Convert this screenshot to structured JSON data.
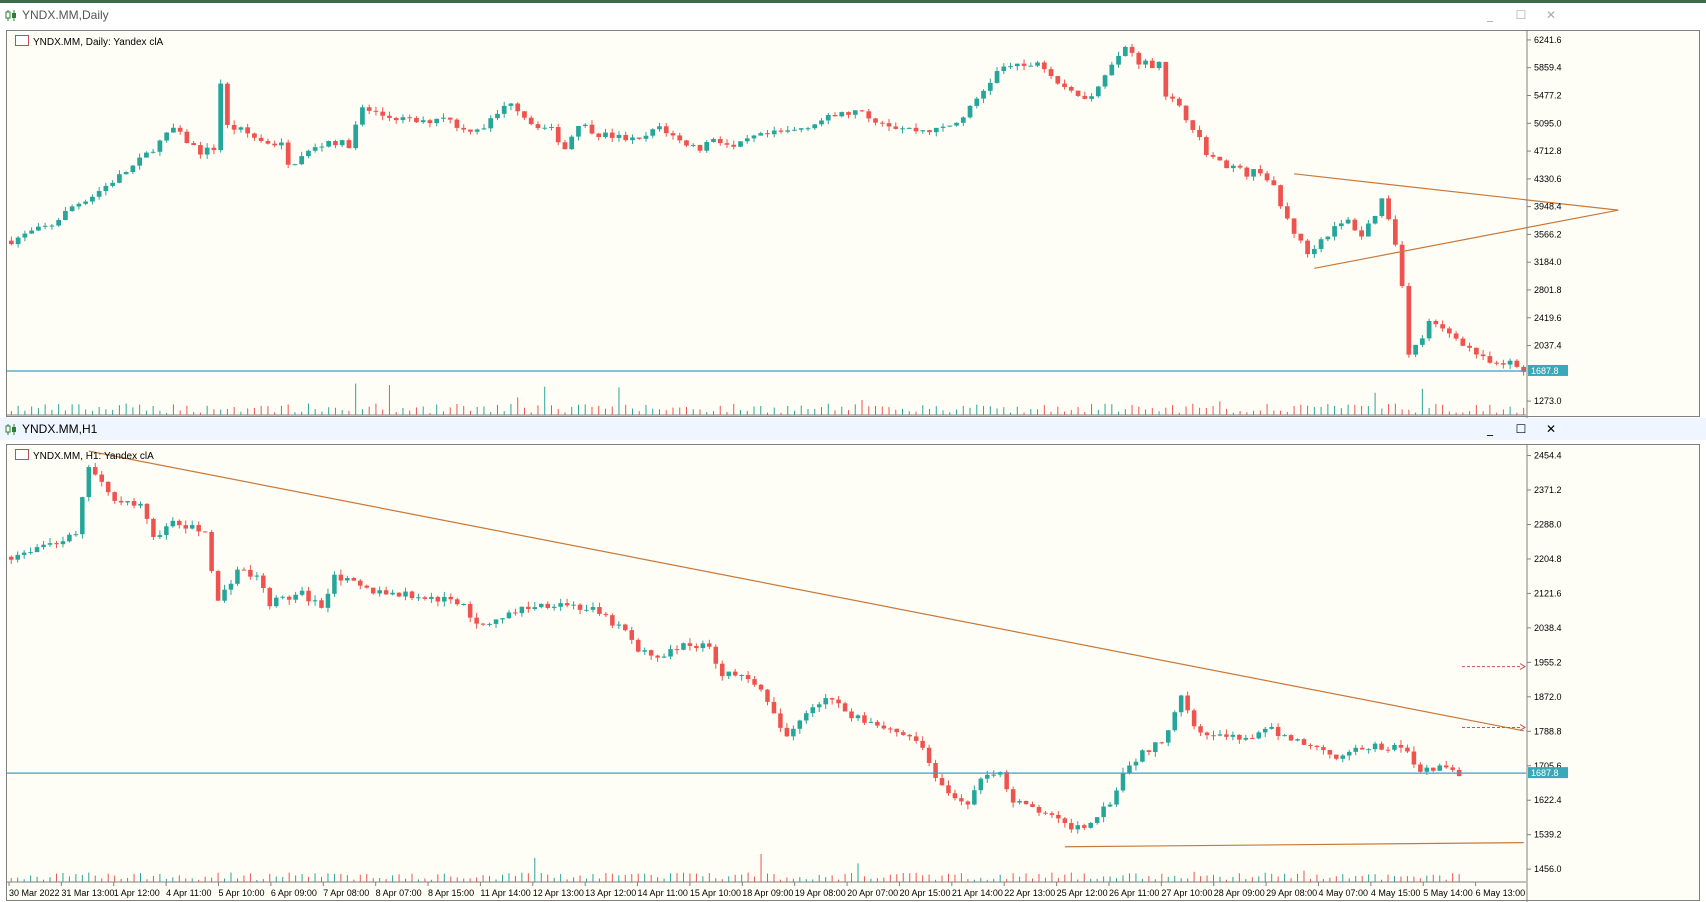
{
  "colors": {
    "bull": "#26a69a",
    "bear": "#ef5350",
    "trendline": "#c8793a",
    "hline": "#3d9fc2",
    "price_tag_bg": "#3ba8b8",
    "chart_bg": "#fffef6",
    "grid_frame": "#808080"
  },
  "icons": {
    "window_icon": "candlestick-icon",
    "chart_icon": "table-icon",
    "minimize": "minimize-icon",
    "maximize": "maximize-icon",
    "close": "close-icon"
  },
  "windows": [
    {
      "title": "YNDX.MM,Daily",
      "active": false,
      "inset_label": "YNDX.MM, Daily:  Yandex clA",
      "price_tag": "1687.8",
      "y_ticks": [
        "6241.6",
        "5859.4",
        "5477.2",
        "5095.0",
        "4712.8",
        "4330.6",
        "3948.4",
        "3566.2",
        "3184.0",
        "2801.8",
        "2419.6",
        "2037.4",
        "1273.0"
      ]
    },
    {
      "title": "YNDX.MM,H1",
      "active": true,
      "inset_label": "YNDX.MM, H1:  Yandex clA",
      "price_tag": "1687.8",
      "y_ticks": [
        "2454.4",
        "2371.2",
        "2288.0",
        "2204.8",
        "2121.6",
        "2038.4",
        "1955.2",
        "1872.0",
        "1788.8",
        "1705.6",
        "1622.4",
        "1539.2",
        "1456.0"
      ],
      "x_ticks": [
        "30 Mar 2022",
        "31 Mar 13:00",
        "1 Apr 12:00",
        "4 Apr 11:00",
        "5 Apr 10:00",
        "6 Apr 09:00",
        "7 Apr 08:00",
        "8 Apr 07:00",
        "8 Apr 15:00",
        "11 Apr 14:00",
        "12 Apr 13:00",
        "13 Apr 12:00",
        "14 Apr 11:00",
        "15 Apr 10:00",
        "18 Apr 09:00",
        "19 Apr 08:00",
        "20 Apr 07:00",
        "20 Apr 15:00",
        "21 Apr 14:00",
        "22 Apr 13:00",
        "25 Apr 12:00",
        "26 Apr 11:00",
        "27 Apr 10:00",
        "28 Apr 09:00",
        "29 Apr 08:00",
        "4 May 07:00",
        "4 May 15:00",
        "5 May 14:00",
        "6 May 13:00"
      ]
    }
  ],
  "chart_data": [
    {
      "type": "candlestick",
      "symbol": "YNDX.MM",
      "timeframe": "Daily",
      "ylim": [
        1082.0,
        6337.0
      ],
      "horizontal_line": 1687.8,
      "close_path": [
        [
          0,
          3480
        ],
        [
          3,
          3600
        ],
        [
          6,
          3700
        ],
        [
          9,
          3950
        ],
        [
          12,
          4100
        ],
        [
          15,
          4300
        ],
        [
          18,
          4500
        ],
        [
          21,
          4750
        ],
        [
          24,
          5020
        ],
        [
          26,
          4850
        ],
        [
          28,
          4700
        ],
        [
          30,
          4750
        ],
        [
          31,
          5650
        ],
        [
          32,
          5050
        ],
        [
          34,
          5000
        ],
        [
          37,
          4850
        ],
        [
          40,
          4800
        ],
        [
          41,
          4500
        ],
        [
          44,
          4700
        ],
        [
          47,
          4850
        ],
        [
          50,
          4800
        ],
        [
          52,
          5300
        ],
        [
          55,
          5200
        ],
        [
          58,
          5150
        ],
        [
          61,
          5100
        ],
        [
          64,
          5200
        ],
        [
          67,
          5000
        ],
        [
          70,
          5050
        ],
        [
          74,
          5400
        ],
        [
          77,
          5100
        ],
        [
          80,
          5000
        ],
        [
          82,
          4750
        ],
        [
          84,
          5100
        ],
        [
          87,
          4950
        ],
        [
          90,
          4900
        ],
        [
          93,
          4850
        ],
        [
          96,
          5050
        ],
        [
          99,
          4850
        ],
        [
          102,
          4750
        ],
        [
          104,
          4900
        ],
        [
          107,
          4750
        ],
        [
          110,
          4900
        ],
        [
          113,
          4950
        ],
        [
          116,
          5000
        ],
        [
          119,
          5100
        ],
        [
          122,
          5200
        ],
        [
          125,
          5250
        ],
        [
          128,
          5150
        ],
        [
          131,
          5050
        ],
        [
          134,
          5000
        ],
        [
          137,
          5000
        ],
        [
          140,
          5100
        ],
        [
          142,
          5300
        ],
        [
          144,
          5550
        ],
        [
          146,
          5800
        ],
        [
          148,
          5900
        ],
        [
          150,
          5850
        ],
        [
          152,
          5950
        ],
        [
          154,
          5750
        ],
        [
          156,
          5550
        ],
        [
          158,
          5500
        ],
        [
          160,
          5450
        ],
        [
          162,
          5800
        ],
        [
          164,
          6000
        ],
        [
          165,
          6150
        ],
        [
          167,
          5950
        ],
        [
          169,
          5900
        ],
        [
          170,
          5950
        ],
        [
          171,
          5500
        ],
        [
          173,
          5300
        ],
        [
          175,
          5050
        ],
        [
          177,
          4700
        ],
        [
          179,
          4550
        ],
        [
          181,
          4500
        ],
        [
          183,
          4400
        ],
        [
          185,
          4450
        ],
        [
          187,
          4200
        ],
        [
          188,
          3950
        ],
        [
          190,
          3600
        ],
        [
          192,
          3300
        ],
        [
          194,
          3500
        ],
        [
          196,
          3650
        ],
        [
          198,
          3750
        ],
        [
          200,
          3550
        ],
        [
          202,
          3850
        ],
        [
          203,
          4050
        ],
        [
          204,
          3800
        ],
        [
          205,
          3450
        ],
        [
          206,
          2900
        ],
        [
          207,
          1900
        ],
        [
          209,
          2150
        ],
        [
          210,
          2350
        ],
        [
          212,
          2250
        ],
        [
          214,
          2150
        ],
        [
          216,
          2000
        ],
        [
          218,
          1850
        ],
        [
          220,
          1750
        ],
        [
          222,
          1800
        ],
        [
          224,
          1688
        ]
      ],
      "trendlines": [
        {
          "from": [
            190,
            4400
          ],
          "to": [
            238,
            3900
          ]
        },
        {
          "from": [
            193,
            3100
          ],
          "to": [
            238,
            3900
          ]
        }
      ]
    },
    {
      "type": "candlestick",
      "symbol": "YNDX.MM",
      "timeframe": "H1",
      "ylim": [
        1425.0,
        2475.0
      ],
      "horizontal_line": 1687.8,
      "close_path": [
        [
          0,
          2210
        ],
        [
          5,
          2240
        ],
        [
          10,
          2260
        ],
        [
          12,
          2430
        ],
        [
          15,
          2360
        ],
        [
          20,
          2330
        ],
        [
          22,
          2260
        ],
        [
          25,
          2290
        ],
        [
          30,
          2270
        ],
        [
          32,
          2100
        ],
        [
          35,
          2180
        ],
        [
          38,
          2160
        ],
        [
          40,
          2100
        ],
        [
          45,
          2120
        ],
        [
          48,
          2090
        ],
        [
          50,
          2170
        ],
        [
          52,
          2150
        ],
        [
          55,
          2130
        ],
        [
          60,
          2120
        ],
        [
          65,
          2110
        ],
        [
          70,
          2100
        ],
        [
          72,
          2040
        ],
        [
          75,
          2060
        ],
        [
          80,
          2090
        ],
        [
          85,
          2100
        ],
        [
          90,
          2080
        ],
        [
          95,
          2030
        ],
        [
          97,
          1980
        ],
        [
          100,
          1970
        ],
        [
          105,
          2000
        ],
        [
          108,
          1990
        ],
        [
          110,
          1930
        ],
        [
          115,
          1910
        ],
        [
          120,
          1770
        ],
        [
          123,
          1840
        ],
        [
          126,
          1870
        ],
        [
          130,
          1830
        ],
        [
          135,
          1800
        ],
        [
          140,
          1770
        ],
        [
          143,
          1680
        ],
        [
          145,
          1630
        ],
        [
          148,
          1620
        ],
        [
          151,
          1690
        ],
        [
          153,
          1690
        ],
        [
          155,
          1620
        ],
        [
          160,
          1590
        ],
        [
          163,
          1560
        ],
        [
          166,
          1560
        ],
        [
          170,
          1620
        ],
        [
          172,
          1690
        ],
        [
          175,
          1740
        ],
        [
          178,
          1760
        ],
        [
          181,
          1880
        ],
        [
          183,
          1810
        ],
        [
          185,
          1780
        ],
        [
          190,
          1770
        ],
        [
          195,
          1790
        ],
        [
          200,
          1760
        ],
        [
          205,
          1730
        ],
        [
          210,
          1750
        ],
        [
          215,
          1750
        ],
        [
          218,
          1700
        ],
        [
          221,
          1700
        ],
        [
          224,
          1688
        ]
      ],
      "trendlines": [
        {
          "from": [
            12,
            2465
          ],
          "to": [
            234,
            1790
          ]
        },
        {
          "from": [
            163,
            1510
          ],
          "to": [
            234,
            1520
          ]
        }
      ],
      "arrows": [
        1945,
        1798
      ]
    }
  ]
}
